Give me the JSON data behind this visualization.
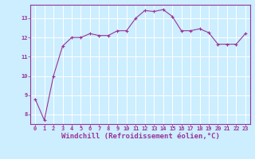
{
  "x": [
    0,
    1,
    2,
    3,
    4,
    5,
    6,
    7,
    8,
    9,
    10,
    11,
    12,
    13,
    14,
    15,
    16,
    17,
    18,
    19,
    20,
    21,
    22,
    23
  ],
  "y": [
    8.8,
    7.7,
    10.0,
    11.55,
    12.0,
    12.0,
    12.2,
    12.1,
    12.1,
    12.35,
    12.35,
    13.0,
    13.4,
    13.35,
    13.45,
    13.1,
    12.35,
    12.35,
    12.45,
    12.25,
    11.65,
    11.65,
    11.65,
    12.2
  ],
  "line_color": "#993399",
  "marker": "+",
  "background_color": "#cceeff",
  "grid_color": "#ffffff",
  "xlabel": "Windchill (Refroidissement éolien,°C)",
  "xlim": [
    -0.5,
    23.5
  ],
  "ylim": [
    7.5,
    13.7
  ],
  "yticks": [
    8,
    9,
    10,
    11,
    12,
    13
  ],
  "xticks": [
    0,
    1,
    2,
    3,
    4,
    5,
    6,
    7,
    8,
    9,
    10,
    11,
    12,
    13,
    14,
    15,
    16,
    17,
    18,
    19,
    20,
    21,
    22,
    23
  ],
  "tick_color": "#993399",
  "tick_fontsize": 5.0,
  "xlabel_fontsize": 6.5,
  "axis_label_color": "#993399",
  "spine_color": "#993399"
}
